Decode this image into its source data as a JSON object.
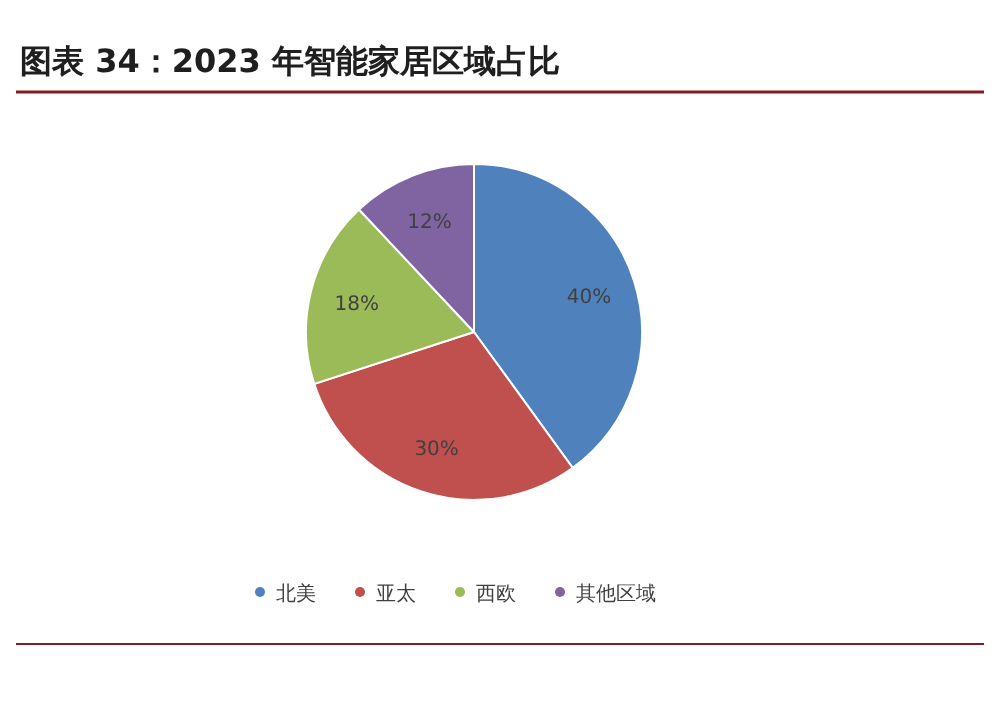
{
  "chart_data": {
    "type": "pie",
    "title": "图表 34：2023 年智能家居区域占比",
    "categories": [
      "北美",
      "亚太",
      "西欧",
      "其他区域"
    ],
    "values": [
      40,
      30,
      18,
      12
    ],
    "colors": [
      "#4f81bd",
      "#c0504d",
      "#9bbb59",
      "#8064a2"
    ],
    "value_labels": [
      "40%",
      "30%",
      "18%",
      "12%"
    ],
    "legend": "bottom"
  }
}
